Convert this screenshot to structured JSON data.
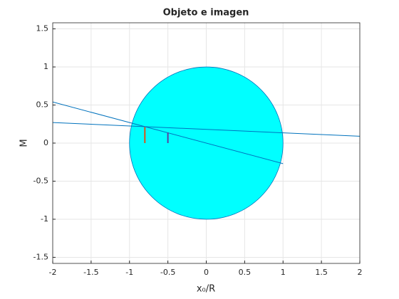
{
  "chart_data": {
    "type": "line",
    "title": "Objeto e imagen",
    "xlabel": "x₀/R",
    "ylabel": "M",
    "xlim": [
      -2,
      2
    ],
    "ylim": [
      -1.58,
      1.58
    ],
    "xticks": [
      -2,
      -1.5,
      -1,
      -0.5,
      0,
      0.5,
      1,
      1.5,
      2
    ],
    "yticks": [
      -1.5,
      -1,
      -0.5,
      0,
      0.5,
      1,
      1.5
    ],
    "grid": true,
    "circle": {
      "cx": 0,
      "cy": 0,
      "r": 1,
      "fill": "#00ffff",
      "edge": "#0072bd"
    },
    "series": [
      {
        "color": "#0072bd",
        "x": [
          -2,
          1
        ],
        "values": [
          0.54,
          -0.27
        ]
      },
      {
        "color": "#0072bd",
        "x": [
          -2,
          2
        ],
        "values": [
          0.27,
          0.09
        ]
      },
      {
        "color": "#d95319",
        "x": [
          -0.8,
          -0.8
        ],
        "values": [
          0,
          0.21
        ]
      },
      {
        "color": "#5a3fa0",
        "x": [
          -0.5,
          -0.5
        ],
        "values": [
          0,
          0.14
        ]
      }
    ]
  }
}
